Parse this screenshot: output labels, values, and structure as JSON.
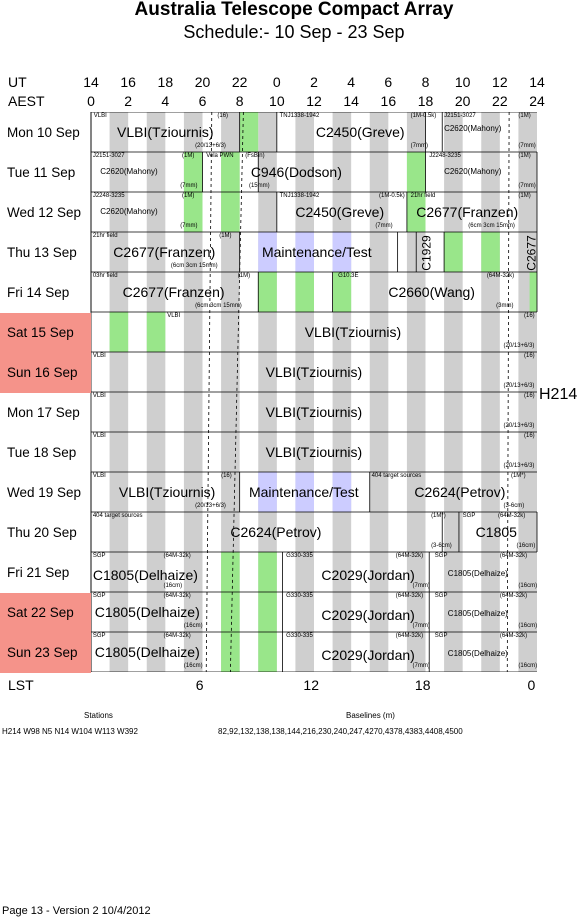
{
  "title": "Australia Telescope Compact Array",
  "subtitle": "Schedule:- 10 Sep - 23 Sep",
  "axis": {
    "ut_label": "UT",
    "aest_label": "AEST",
    "lst_label": "LST",
    "ut_ticks": [
      "14",
      "16",
      "18",
      "20",
      "22",
      "0",
      "2",
      "4",
      "6",
      "8",
      "10",
      "12",
      "14"
    ],
    "aest_ticks": [
      "0",
      "2",
      "4",
      "6",
      "8",
      "10",
      "12",
      "14",
      "16",
      "18",
      "20",
      "22",
      "24"
    ],
    "lst_ticks": [
      "6",
      "12",
      "18",
      "0"
    ]
  },
  "config_label": "H214",
  "colors": {
    "weekend": "#f5938a",
    "gray": "#cfcfcf",
    "green": "#99e68a",
    "blue": "#ccccff"
  },
  "days": [
    {
      "label": "Mon  10 Sep",
      "weekend": false
    },
    {
      "label": "Tue   11 Sep",
      "weekend": false
    },
    {
      "label": "Wed  12 Sep",
      "weekend": false
    },
    {
      "label": "Thu   13 Sep",
      "weekend": false
    },
    {
      "label": "Fri    14 Sep",
      "weekend": false
    },
    {
      "label": "Sat   15 Sep",
      "weekend": true
    },
    {
      "label": "Sun  16 Sep",
      "weekend": true
    },
    {
      "label": "Mon  17 Sep",
      "weekend": false
    },
    {
      "label": "Tue   18 Sep",
      "weekend": false
    },
    {
      "label": "Wed  19 Sep",
      "weekend": false
    },
    {
      "label": "Thu   20 Sep",
      "weekend": false
    },
    {
      "label": "Fri    21 Sep",
      "weekend": false
    },
    {
      "label": "Sat   22 Sep",
      "weekend": true
    },
    {
      "label": "Sun  23 Sep",
      "weekend": true
    }
  ],
  "texts": {
    "r0": [
      "VLBI",
      "(16)",
      "VLBI(Tziournis)",
      "(20/13+6/3)",
      "TNJ1338-1942",
      "(1M-0.5k)",
      "C2450(Greve)",
      "(7mm)",
      "J2151-3027",
      "(1M)",
      "C2620(Mahony)",
      "(7mm)"
    ],
    "r1": [
      "J2151-3027",
      "(1M)",
      "C2620(Mahony)",
      "(7mm)",
      "Vela PWN",
      "(FsBin)",
      "C946(Dodson)",
      "(15mm)",
      "J2248-3235",
      "(1M)",
      "C2620(Mahony)",
      "(7mm)"
    ],
    "r2": [
      "J2248-3235",
      "(1M)",
      "C2620(Mahony)",
      "(7mm)",
      "TNJ1338-1942",
      "(1M-0.5k)",
      "C2450(Greve)",
      "(7mm)",
      "21hr field",
      "(1M)",
      "C2677(Franzen)",
      "(6cm 3cm 15mm)"
    ],
    "r3": [
      "21hr field",
      "(1M)",
      "C2677(Franzen)",
      "(6cm 3cm 15mm)",
      "Maintenance/Test",
      "C1929",
      "C2677"
    ],
    "r4": [
      "03hr field",
      "(1M)",
      "C2677(Franzen)",
      "(6cm 3cm 15mm)",
      "G10.3E",
      "(64M-32k)",
      "C2660(Wang)",
      "(3mm)"
    ],
    "r5": [
      "VLBI",
      "(16)",
      "VLBI(Tziournis)",
      "(20/13+6/3)"
    ],
    "r6": [
      "VLBI",
      "(16)",
      "VLBI(Tziournis)",
      "(20/13+6/3)"
    ],
    "r7": [
      "VLBI",
      "(16)",
      "VLBI(Tziournis)",
      "(20/13+6/3)"
    ],
    "r8": [
      "VLBI",
      "(16)",
      "VLBI(Tziournis)",
      "(20/13+6/3)"
    ],
    "r9": [
      "VLBI",
      "(16)",
      "VLBI(Tziournis)",
      "(20/13+6/3)",
      "Maintenance/Test",
      "404  target sources",
      "(1M*)",
      "C2624(Petrov)",
      "(3-6cm)"
    ],
    "r10": [
      "404  target sources",
      "(1M*)",
      "C2624(Petrov)",
      "(3-6cm)",
      "SGP",
      "(64M-32k)",
      "C1805",
      "(16cm)"
    ],
    "r11": [
      "SGP",
      "(64M-32k)",
      "C1805(Delhaize)",
      "(16cm)",
      "G330-335",
      "(64M-32k)",
      "C2029(Jordan)",
      "(7mm)",
      "SGP",
      "(64M-32k)",
      "C1805(Delhaize)",
      "(16cm)"
    ],
    "r12": [
      "SGP",
      "(64M-32k)",
      "C1805(Delhaize)",
      "(16cm)",
      "G330-335",
      "(64M-32k)",
      "C2029(Jordan)",
      "(7mm)",
      "SGP",
      "(64M-32k)",
      "C1805(Delhaize)",
      "(16cm)"
    ],
    "r13": [
      "SGP",
      "(64M-32k)",
      "C1805(Delhaize)",
      "(16cm)",
      "G330-335",
      "(64M-32k)",
      "C2029(Jordan)",
      "(7mm)",
      "SGP",
      "(64M-32k)",
      "C1805(Delhaize)",
      "(16cm)"
    ]
  },
  "footer": {
    "stations_label": "Stations",
    "stations_value": "H214   W98 N5 N14 W104 W113 W392",
    "baselines_label": "Baselines (m)",
    "baselines_value": "82,92,132,138,138,144,216,230,240,247,4270,4378,4383,4408,4500",
    "page": "Page 13 - Version 2  10/4/2012"
  }
}
